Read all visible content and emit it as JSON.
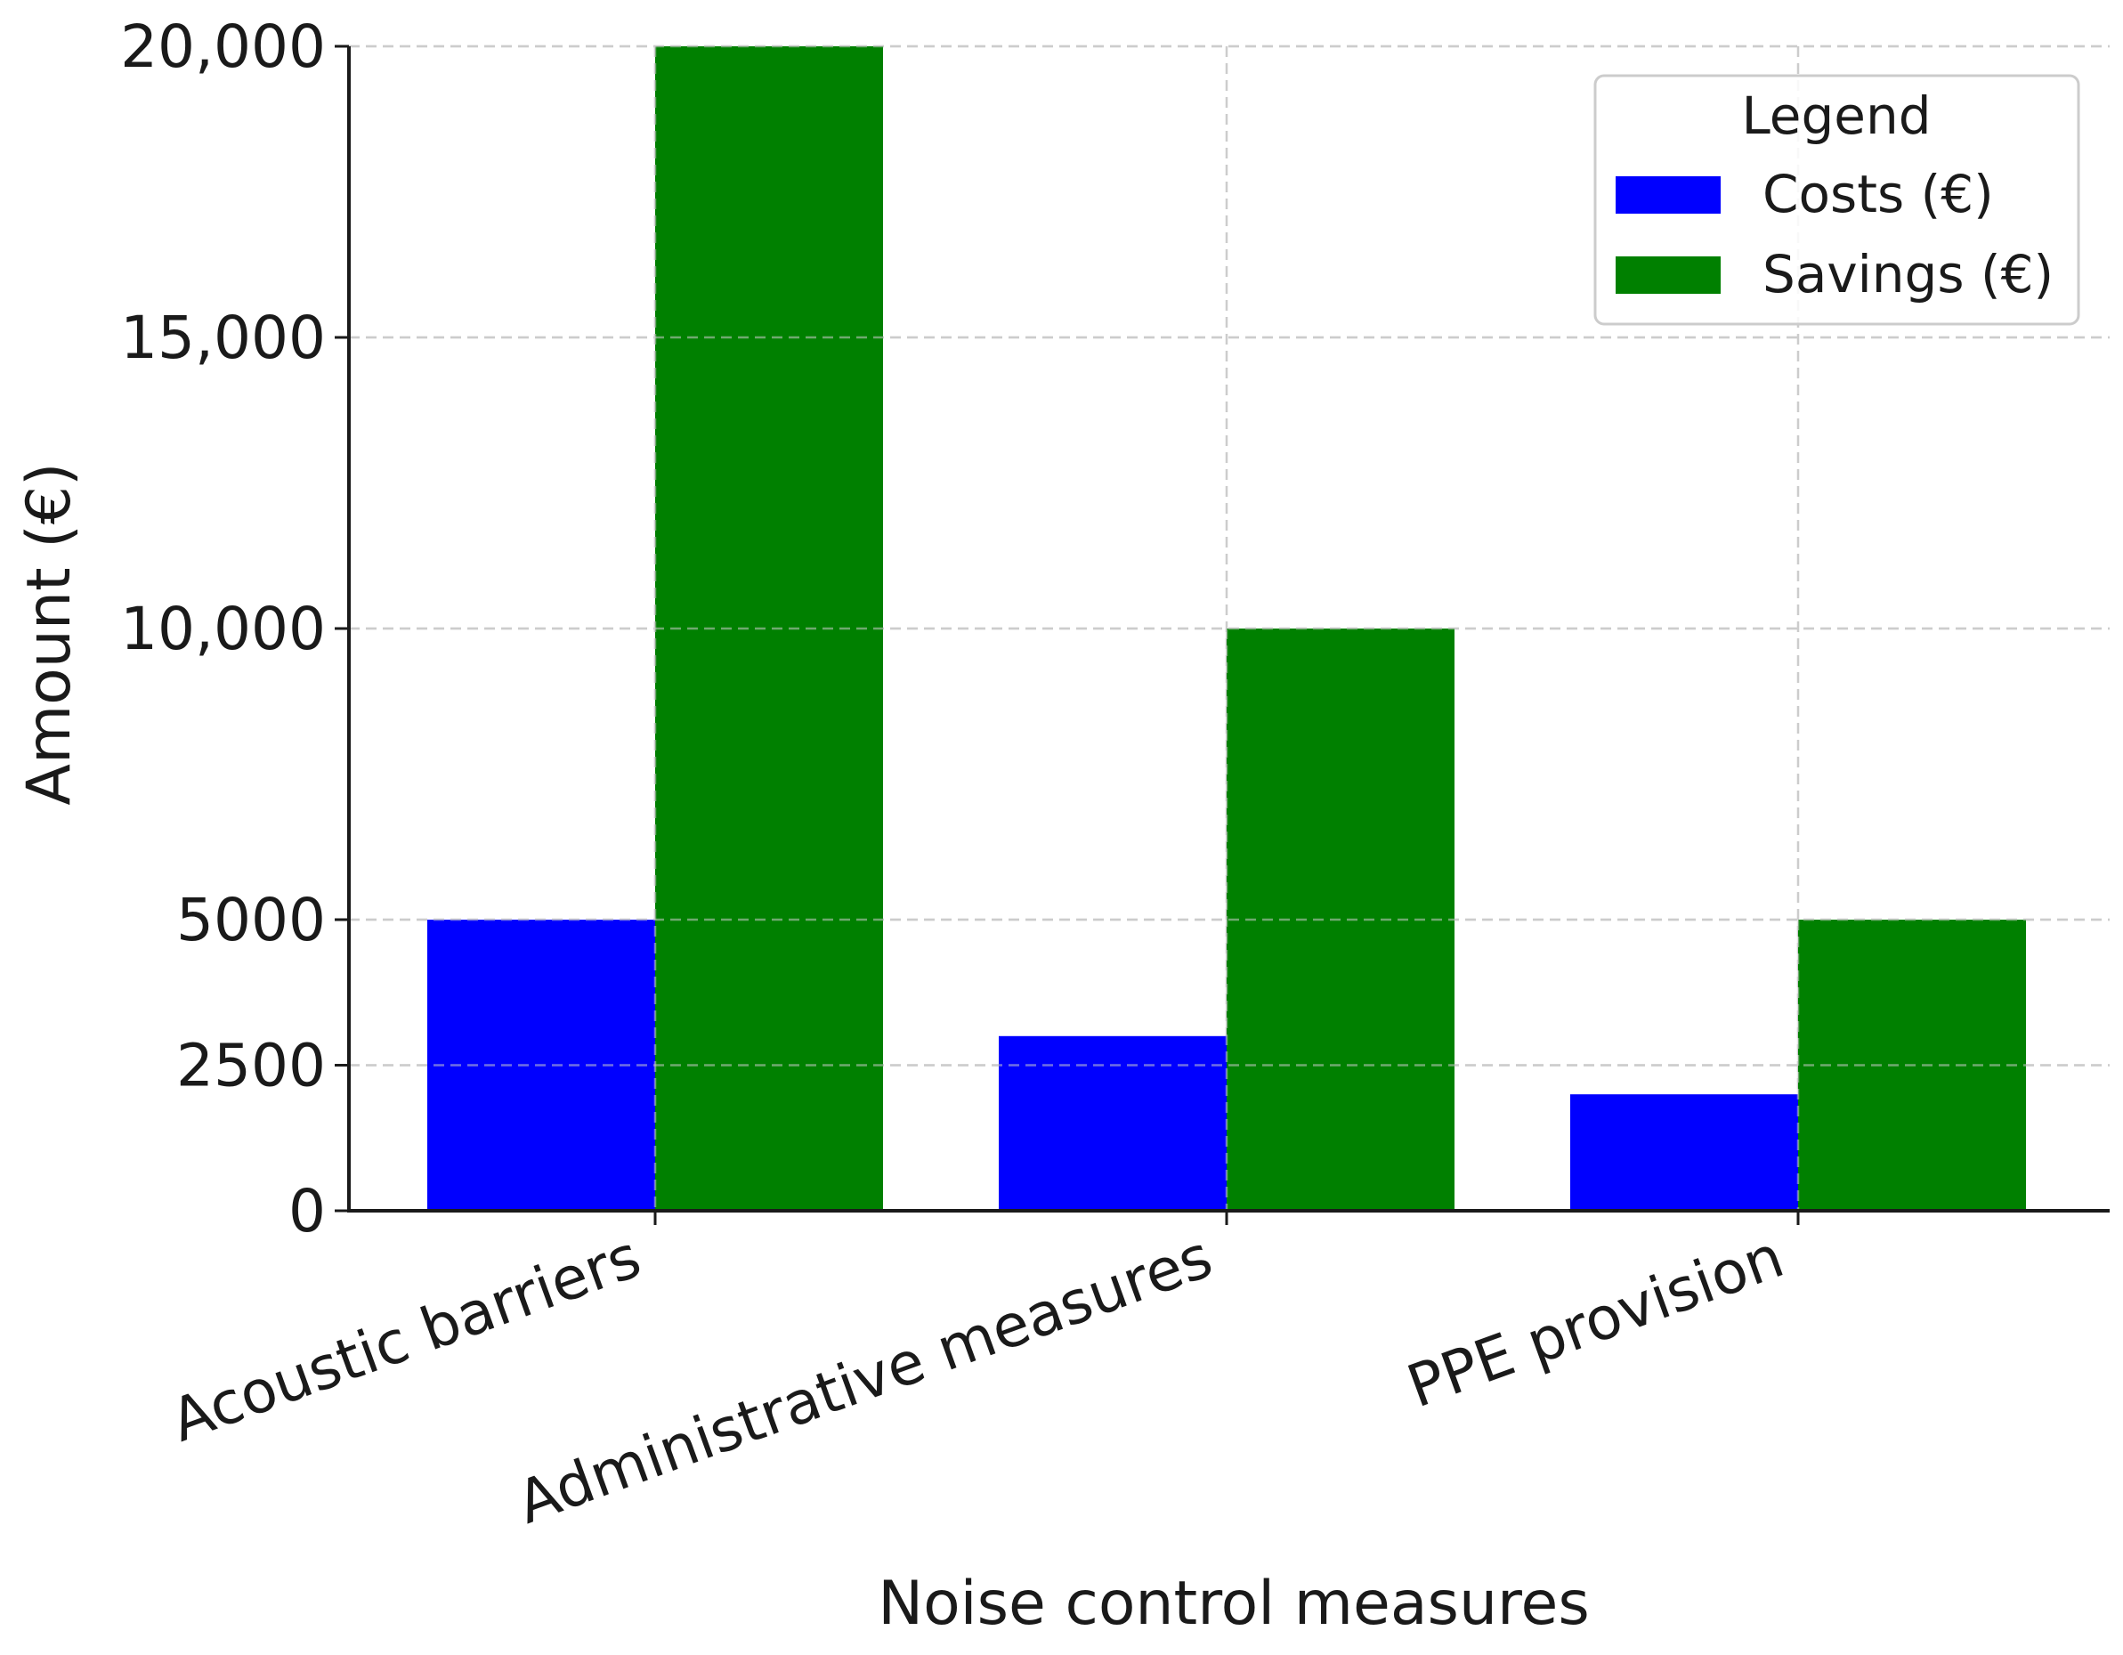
{
  "chart_data": {
    "type": "bar",
    "title": "",
    "xlabel": "Noise control measures",
    "ylabel": "Amount (€)",
    "ylim": [
      0,
      20000
    ],
    "yticks": [
      {
        "value": 0,
        "label": "0"
      },
      {
        "value": 2500,
        "label": "2500"
      },
      {
        "value": 5000,
        "label": "5000"
      },
      {
        "value": 10000,
        "label": "10,000"
      },
      {
        "value": 15000,
        "label": "15,000"
      },
      {
        "value": 20000,
        "label": "20,000"
      }
    ],
    "categories": [
      "Acoustic barriers",
      "Administrative measures",
      "PPE provision"
    ],
    "series": [
      {
        "name": "Costs (€)",
        "color": "#0000ff",
        "values": [
          5000,
          3000,
          2000
        ]
      },
      {
        "name": "Savings (€)",
        "color": "#008000",
        "values": [
          20000,
          10000,
          5000
        ]
      }
    ],
    "legend": {
      "title": "Legend",
      "position": "top-right"
    },
    "grid": true
  }
}
